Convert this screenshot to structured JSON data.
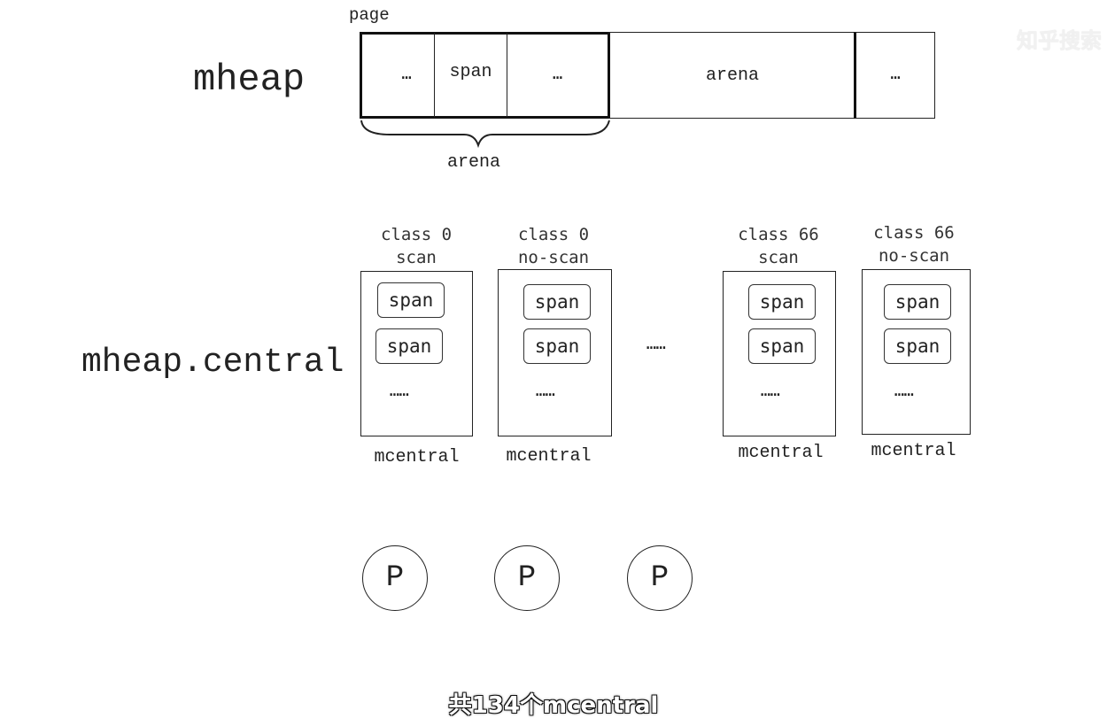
{
  "watermark": "知乎搜索",
  "mheap": {
    "title": "mheap",
    "page_label": "page",
    "cells": [
      "…",
      "span",
      "…",
      "arena",
      "…"
    ],
    "brace_label": "arena"
  },
  "central": {
    "title": "mheap.central",
    "between_dots": "……",
    "columns": [
      {
        "class_label": "class 0",
        "kind_label": "scan",
        "spans": [
          "span",
          "span"
        ],
        "dots": "……",
        "footer": "mcentral"
      },
      {
        "class_label": "class 0",
        "kind_label": "no-scan",
        "spans": [
          "span",
          "span"
        ],
        "dots": "……",
        "footer": "mcentral"
      },
      {
        "class_label": "class 66",
        "kind_label": "scan",
        "spans": [
          "span",
          "span"
        ],
        "dots": "……",
        "footer": "mcentral"
      },
      {
        "class_label": "class 66",
        "kind_label": "no-scan",
        "spans": [
          "span",
          "span"
        ],
        "dots": "……",
        "footer": "mcentral"
      }
    ]
  },
  "processors": [
    "P",
    "P",
    "P"
  ],
  "subtitle": "共134个mcentral"
}
